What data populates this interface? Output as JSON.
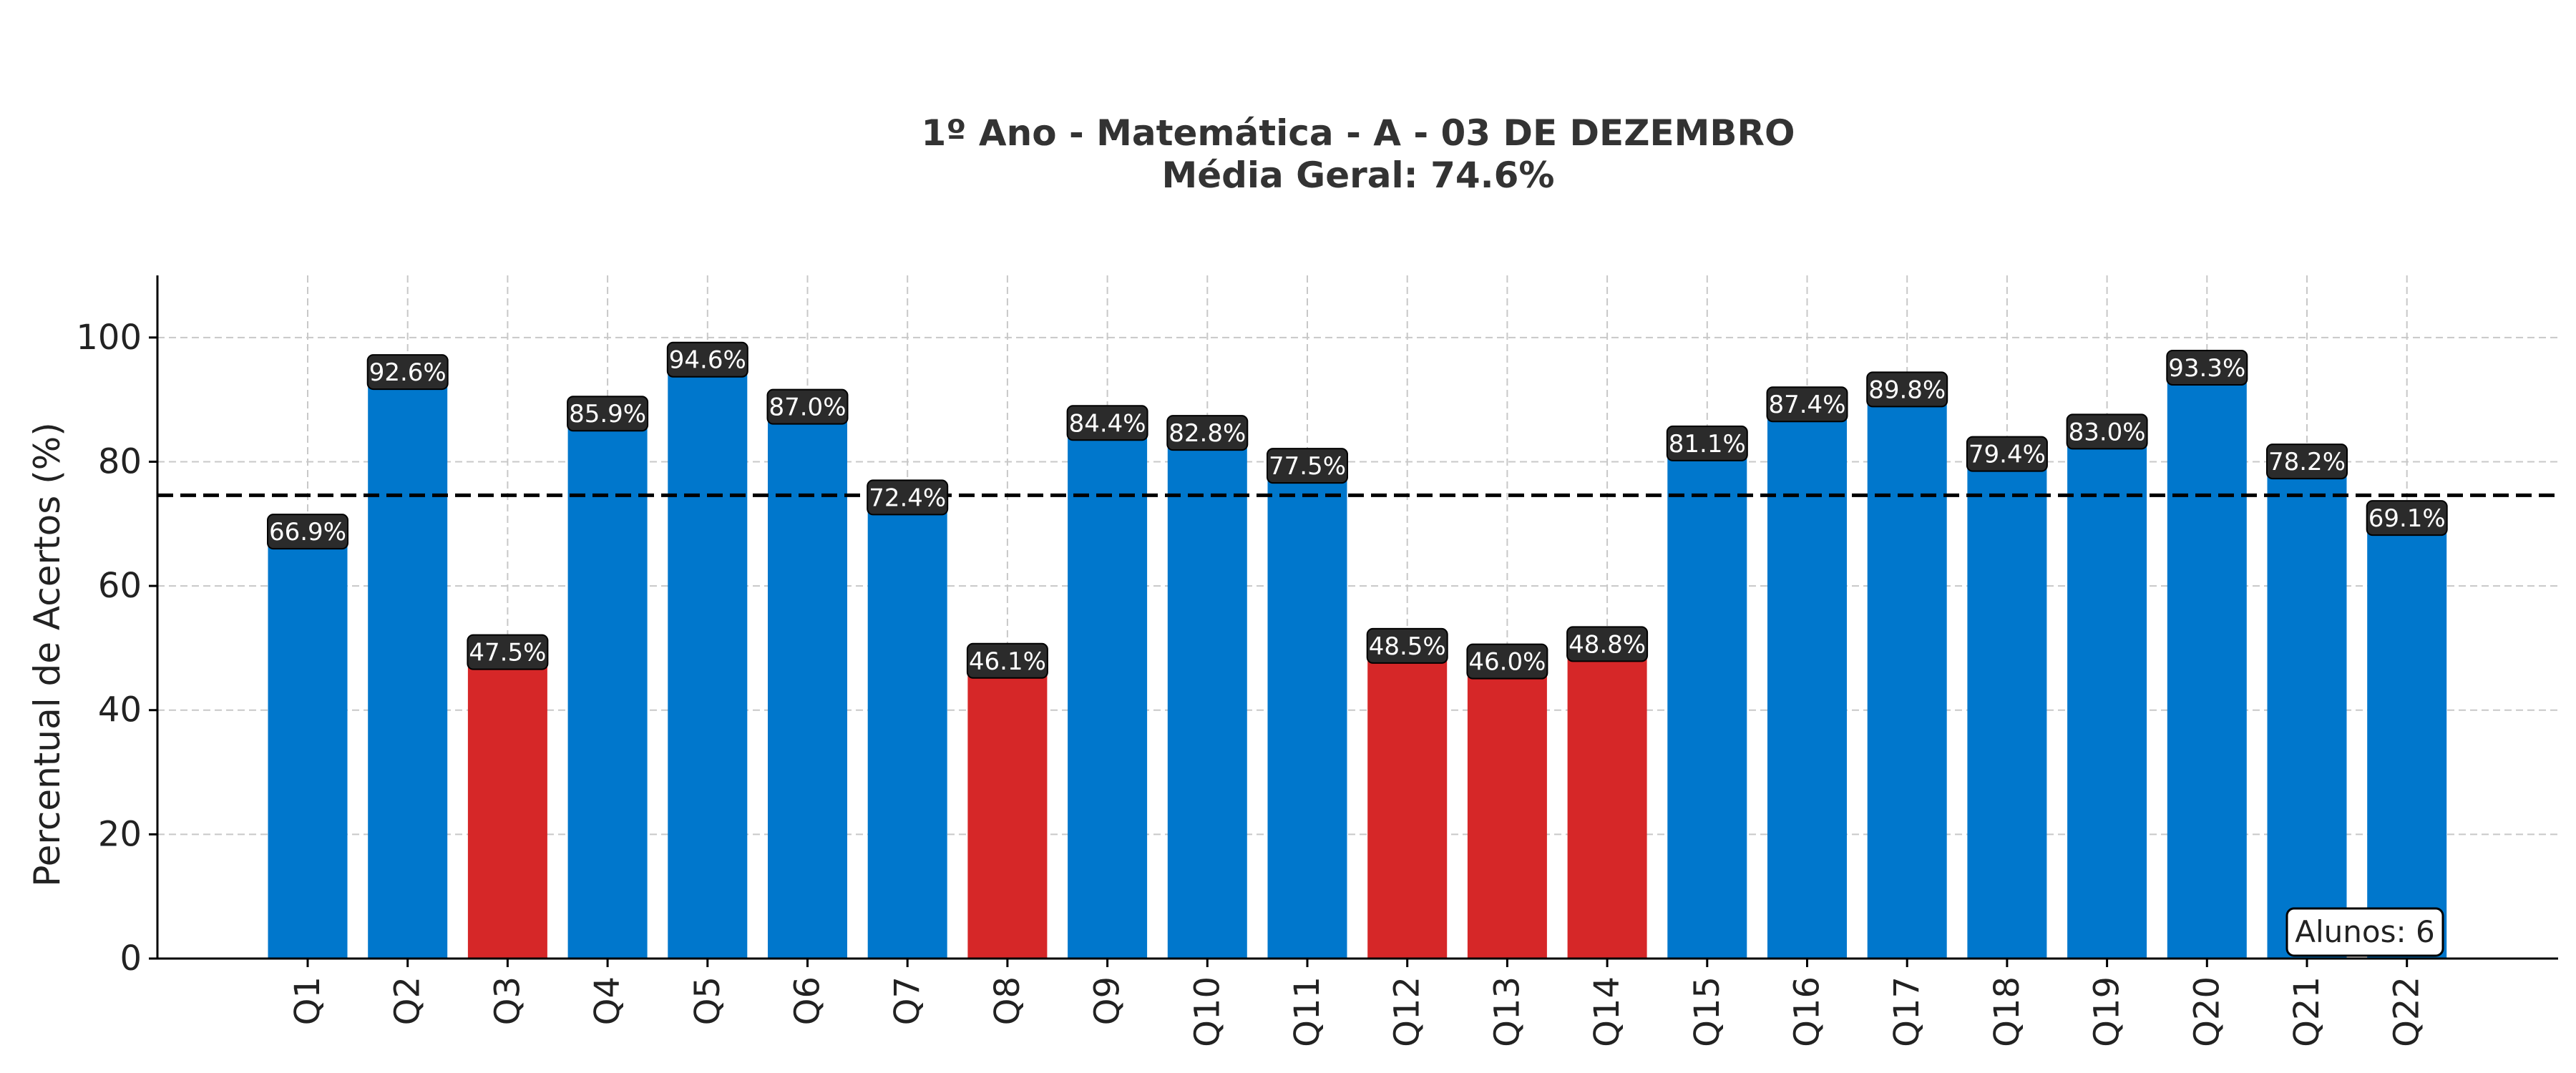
{
  "chart_data": {
    "type": "bar",
    "title": "1º Ano - Matemática - A - 03 DE DEZEMBRO",
    "subtitle": "Média Geral: 74.6%",
    "xlabel": "",
    "ylabel": "Percentual de Acertos (%)",
    "ylim": [
      0,
      110
    ],
    "yticks": [
      0,
      20,
      40,
      60,
      80,
      100
    ],
    "grid": true,
    "categories": [
      "Q1",
      "Q2",
      "Q3",
      "Q4",
      "Q5",
      "Q6",
      "Q7",
      "Q8",
      "Q9",
      "Q10",
      "Q11",
      "Q12",
      "Q13",
      "Q14",
      "Q15",
      "Q16",
      "Q17",
      "Q18",
      "Q19",
      "Q20",
      "Q21",
      "Q22"
    ],
    "values": [
      66.9,
      92.6,
      47.5,
      85.9,
      94.6,
      87.0,
      72.4,
      46.1,
      84.4,
      82.8,
      77.5,
      48.5,
      46.0,
      48.8,
      81.1,
      87.4,
      89.8,
      79.4,
      83.0,
      93.3,
      78.2,
      69.1
    ],
    "data_labels": [
      "66.9%",
      "92.6%",
      "47.5%",
      "85.9%",
      "94.6%",
      "87.0%",
      "72.4%",
      "46.1%",
      "84.4%",
      "82.8%",
      "77.5%",
      "48.5%",
      "46.0%",
      "48.8%",
      "81.1%",
      "87.4%",
      "89.8%",
      "79.4%",
      "83.0%",
      "93.3%",
      "78.2%",
      "69.1%"
    ],
    "reference_line": {
      "value": 74.6,
      "style": "dashed"
    },
    "threshold": 50,
    "annotation": "Alunos: 6"
  },
  "colors": {
    "bar_high": "#0077CC",
    "bar_low": "#D62728",
    "label_bg": "#2B2B2B",
    "grid": "#C8C8C8",
    "reference_line": "#000000",
    "text": "#222222"
  }
}
